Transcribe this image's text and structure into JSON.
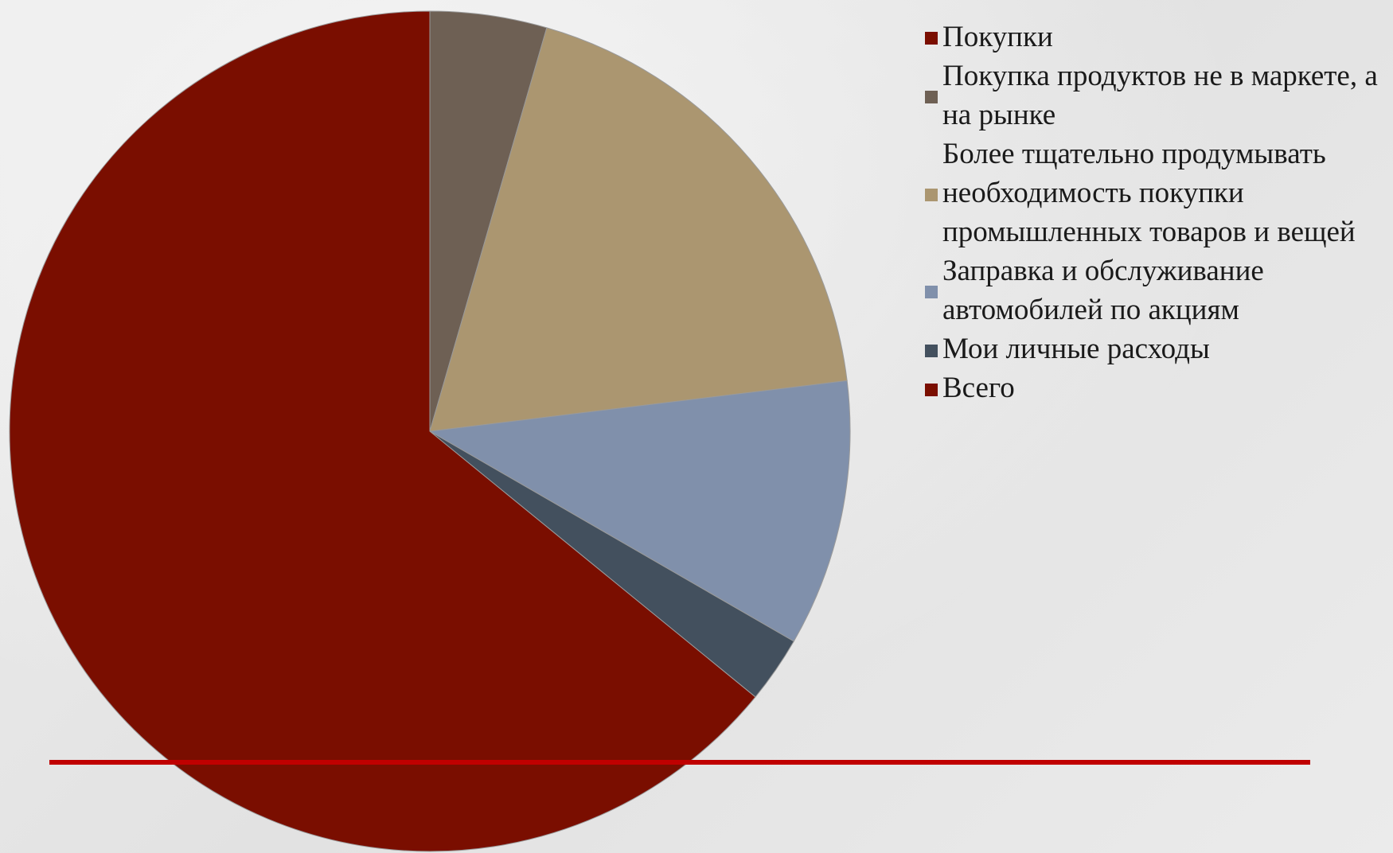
{
  "chart_data": {
    "type": "pie",
    "title": "",
    "legend_position": "right",
    "slices": [
      {
        "label": "Покупки",
        "value": 0,
        "color": "#7a0e00"
      },
      {
        "label": "Покупка продуктов не в маркете, а на рынке",
        "value": 3.5,
        "color": "#6e6054"
      },
      {
        "label": "Более тщательно продумывать необходимость покупки промышленных товаров и вещей",
        "value": 14.5,
        "color": "#ab9670"
      },
      {
        "label": "Заправка и обслуживание автомобилей по акциям",
        "value": 8.0,
        "color": "#8090ab"
      },
      {
        "label": "Мои личные расходы",
        "value": 2.0,
        "color": "#43505e"
      },
      {
        "label": "Всего",
        "value": 50,
        "color": "#7a0e00"
      }
    ]
  },
  "accent_line_color": "#c00000"
}
